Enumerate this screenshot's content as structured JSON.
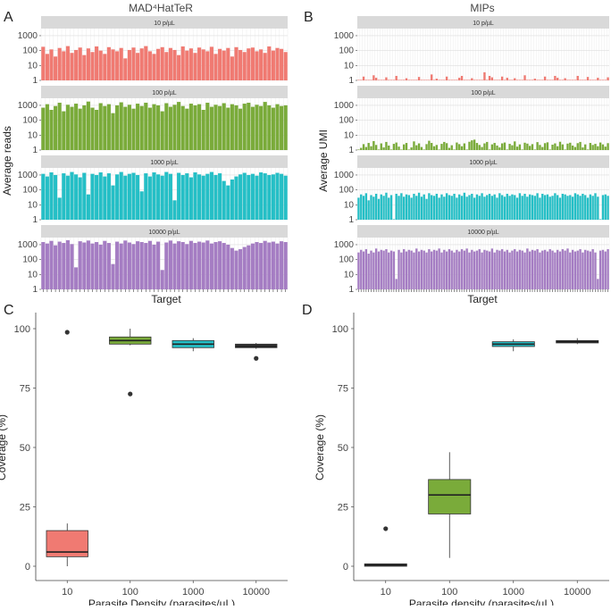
{
  "colors": {
    "red": "#f07a72",
    "green": "#7aab3a",
    "cyan": "#25bfc6",
    "purple": "#a57dc3",
    "strip": "#d9d9d9",
    "grid": "#ebebeb",
    "dark": "#333333"
  },
  "panels": {
    "A": {
      "label": "A",
      "title": "MAD⁴HatTeR",
      "ylabel": "Average reads",
      "xlabel": "Target"
    },
    "B": {
      "label": "B",
      "title": "MIPs",
      "ylabel": "Average UMI",
      "xlabel": "Target"
    },
    "C": {
      "label": "C"
    },
    "D": {
      "label": "D"
    }
  },
  "chart_data": [
    {
      "id": "A",
      "type": "bar",
      "title": "MAD⁴HatTeR",
      "xlabel": "Target",
      "ylabel": "Average reads",
      "yscale": "log10",
      "ylim": [
        1,
        3000
      ],
      "yticks": [
        "1",
        "10",
        "100",
        "1000"
      ],
      "n_targets": 60,
      "facets": [
        {
          "strip": "10 p/µL",
          "color": "red",
          "values": [
            180,
            60,
            120,
            40,
            150,
            90,
            200,
            70,
            110,
            160,
            50,
            140,
            80,
            190,
            100,
            60,
            170,
            120,
            90,
            150,
            30,
            110,
            160,
            70,
            140,
            200,
            90,
            60,
            130,
            170,
            80,
            150,
            110,
            50,
            190,
            100,
            140,
            70,
            160,
            120,
            90,
            180,
            60,
            130,
            100,
            150,
            40,
            170,
            110,
            80,
            140,
            160,
            90,
            120,
            70,
            190,
            100,
            150,
            130,
            80
          ]
        },
        {
          "strip": "100 p/µL",
          "color": "green",
          "values": [
            700,
            1200,
            500,
            900,
            1500,
            400,
            1100,
            800,
            1300,
            600,
            1000,
            1800,
            700,
            500,
            1400,
            900,
            1200,
            300,
            1000,
            1600,
            800,
            1100,
            600,
            1300,
            900,
            1500,
            700,
            1200,
            1000,
            400,
            1400,
            800,
            1100,
            1700,
            900,
            600,
            1300,
            1000,
            1200,
            500,
            1500,
            800,
            1100,
            900,
            1400,
            700,
            1200,
            1000,
            600,
            1300,
            1500,
            800,
            1100,
            900,
            1700,
            1000,
            700,
            1200,
            900,
            1000
          ]
        },
        {
          "strip": "1000 p/µL",
          "color": "cyan",
          "values": [
            1200,
            800,
            1500,
            1000,
            30,
            1300,
            900,
            1600,
            1100,
            700,
            1400,
            50,
            1200,
            1000,
            1500,
            800,
            1300,
            200,
            1100,
            1600,
            900,
            1200,
            1400,
            1000,
            80,
            1300,
            800,
            1500,
            1100,
            900,
            1600,
            1200,
            20,
            1400,
            1000,
            1300,
            700,
            1500,
            1100,
            900,
            1200,
            1600,
            1000,
            1300,
            400,
            200,
            500,
            800,
            1100,
            1400,
            1000,
            1200,
            900,
            1500,
            1300,
            1000,
            1100,
            1400,
            1200,
            900
          ]
        },
        {
          "strip": "10000 p/µL",
          "color": "purple",
          "values": [
            1500,
            1200,
            1800,
            900,
            1600,
            1300,
            2000,
            1100,
            30,
            1700,
            1400,
            1900,
            1200,
            1500,
            1000,
            1800,
            1300,
            50,
            1600,
            1200,
            1900,
            1400,
            1100,
            1700,
            1500,
            1300,
            1800,
            1000,
            1600,
            20,
            1400,
            1900,
            1200,
            1700,
            1500,
            1100,
            1800,
            1300,
            1600,
            1400,
            1900,
            1200,
            1500,
            1700,
            1300,
            1000,
            600,
            400,
            500,
            700,
            900,
            1200,
            1500,
            1300,
            1800,
            1400,
            1600,
            1200,
            1700,
            1500
          ]
        }
      ]
    },
    {
      "id": "B",
      "type": "bar",
      "title": "MIPs",
      "xlabel": "Target",
      "ylabel": "Average UMI",
      "yscale": "log10",
      "ylim": [
        1,
        3000
      ],
      "yticks": [
        "1",
        "10",
        "100",
        "1000"
      ],
      "n_targets": 100,
      "facets": [
        {
          "strip": "10 p/µL",
          "color": "red",
          "values": [
            1,
            1,
            1.8,
            1,
            1,
            1,
            2.2,
            1.5,
            1,
            1,
            1,
            1.6,
            1,
            1,
            1,
            2,
            1,
            1,
            1,
            1.4,
            1,
            1,
            1,
            1,
            1.7,
            1,
            1,
            1,
            1,
            2.5,
            1,
            1.3,
            1,
            1,
            1,
            1.8,
            1,
            1,
            1,
            1,
            1.5,
            2,
            1,
            1,
            1,
            1.4,
            1,
            1,
            1,
            1,
            3.5,
            1,
            2,
            1.6,
            1,
            1,
            1,
            1.8,
            1,
            1.5,
            1,
            1,
            1.4,
            1,
            1,
            1,
            2.2,
            1,
            1,
            1,
            1.3,
            1,
            1,
            1,
            1.8,
            1,
            1,
            1,
            2,
            1.5,
            1,
            1,
            1.4,
            1,
            1,
            1,
            1,
            2,
            1,
            1,
            1,
            1.7,
            1,
            1,
            1,
            1.5,
            1,
            1,
            1,
            1.6
          ]
        },
        {
          "strip": "100 p/µL",
          "color": "green",
          "values": [
            1,
            1.4,
            2.5,
            1.6,
            3,
            1.8,
            4,
            2.2,
            1,
            2.8,
            1.5,
            3.5,
            2,
            1,
            2.6,
            3.2,
            1.7,
            1,
            2.4,
            3,
            1,
            1.5,
            3.8,
            2.1,
            2.8,
            1.6,
            1,
            2.5,
            4.2,
            3,
            1.8,
            2.2,
            1,
            2.6,
            3.5,
            2.9,
            1.4,
            2.1,
            1,
            3.2,
            2.5,
            1.8,
            2.8,
            1,
            3.6,
            4.5,
            5,
            3,
            2.2,
            1.6,
            2.8,
            3.5,
            1,
            2.4,
            3,
            2,
            1.5,
            2.8,
            3.2,
            1,
            2.6,
            2.1,
            3.8,
            1.7,
            2.4,
            1,
            3.1,
            2.7,
            1.9,
            2.5,
            1,
            3.4,
            2.2,
            1.6,
            2.9,
            3.3,
            1,
            2.3,
            2.8,
            1.8,
            3.6,
            2.4,
            1,
            2.7,
            3.1,
            2,
            1.6,
            2.9,
            3.5,
            1.5,
            2.4,
            1,
            3,
            2.2,
            2.6,
            1.8,
            3.2,
            2.4,
            1.7,
            2.9
          ]
        },
        {
          "strip": "1000 p/µL",
          "color": "cyan",
          "values": [
            30,
            50,
            40,
            60,
            20,
            45,
            35,
            55,
            25,
            50,
            40,
            65,
            30,
            45,
            1,
            55,
            40,
            60,
            35,
            50,
            45,
            30,
            55,
            40,
            65,
            35,
            50,
            25,
            60,
            45,
            40,
            55,
            30,
            50,
            35,
            60,
            45,
            40,
            55,
            30,
            50,
            40,
            65,
            35,
            45,
            55,
            30,
            50,
            40,
            60,
            35,
            45,
            55,
            40,
            50,
            30,
            60,
            45,
            35,
            55,
            40,
            50,
            45,
            30,
            60,
            40,
            55,
            35,
            50,
            45,
            40,
            60,
            30,
            55,
            45,
            50,
            35,
            40,
            60,
            45,
            30,
            55,
            50,
            40,
            45,
            35,
            60,
            50,
            40,
            55,
            45,
            30,
            50,
            40,
            60,
            35,
            1,
            45,
            50,
            40
          ]
        },
        {
          "strip": "10000 p/µL",
          "color": "purple",
          "values": [
            300,
            450,
            350,
            500,
            250,
            400,
            300,
            550,
            350,
            450,
            400,
            500,
            300,
            400,
            350,
            5,
            450,
            300,
            500,
            350,
            450,
            400,
            300,
            550,
            350,
            450,
            400,
            300,
            500,
            350,
            450,
            400,
            550,
            300,
            450,
            350,
            500,
            400,
            300,
            450,
            350,
            500,
            400,
            550,
            300,
            450,
            350,
            400,
            500,
            300,
            450,
            400,
            350,
            550,
            300,
            450,
            400,
            500,
            350,
            450,
            300,
            400,
            500,
            350,
            450,
            400,
            300,
            550,
            350,
            450,
            400,
            500,
            300,
            400,
            450,
            350,
            500,
            400,
            300,
            450,
            350,
            500,
            400,
            550,
            300,
            450,
            350,
            400,
            500,
            300,
            450,
            400,
            350,
            500,
            300,
            5,
            400,
            450,
            350,
            500
          ]
        }
      ]
    },
    {
      "id": "C",
      "type": "box",
      "xlabel": "Parasite Density (parasites/µL)",
      "ylabel": "Coverage (%)",
      "ylim": [
        0,
        100
      ],
      "yticks": [
        0,
        25,
        50,
        75,
        100
      ],
      "categories": [
        "10",
        "100",
        "1000",
        "10000"
      ],
      "boxes": [
        {
          "color": "red",
          "min": 0,
          "q1": 4,
          "median": 6,
          "q3": 15,
          "max": 18,
          "outliers": [
            98.5
          ]
        },
        {
          "color": "green",
          "min": 93,
          "q1": 93.5,
          "median": 95,
          "q3": 96.5,
          "max": 100,
          "outliers": [
            72.5
          ]
        },
        {
          "color": "cyan",
          "min": 90.5,
          "q1": 92,
          "median": 93.5,
          "q3": 95,
          "max": 96,
          "outliers": []
        },
        {
          "color": "dark",
          "min": 91.5,
          "q1": 92,
          "median": 92.5,
          "q3": 93.5,
          "max": 94,
          "outliers": [
            87.5
          ]
        }
      ]
    },
    {
      "id": "D",
      "type": "box",
      "xlabel": "Parasite density (parasites/µL)",
      "ylabel": "Coverage (%)",
      "ylim": [
        0,
        100
      ],
      "yticks": [
        0,
        25,
        50,
        75,
        100
      ],
      "categories": [
        "10",
        "100",
        "1000",
        "10000"
      ],
      "boxes": [
        {
          "color": "dark",
          "min": 0,
          "q1": 0,
          "median": 0.5,
          "q3": 1,
          "max": 1,
          "outliers": [
            15.8
          ]
        },
        {
          "color": "green",
          "min": 3.5,
          "q1": 22,
          "median": 30,
          "q3": 36.5,
          "max": 48,
          "outliers": []
        },
        {
          "color": "cyan",
          "min": 90.5,
          "q1": 92.5,
          "median": 93.5,
          "q3": 94.5,
          "max": 95.5,
          "outliers": []
        },
        {
          "color": "dark",
          "min": 93.5,
          "q1": 94,
          "median": 94.5,
          "q3": 95,
          "max": 96,
          "outliers": []
        }
      ]
    }
  ]
}
